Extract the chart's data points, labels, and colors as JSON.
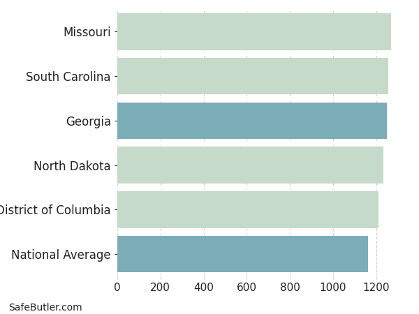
{
  "categories": [
    "National Average",
    "District of Columbia",
    "North Dakota",
    "Georgia",
    "South Carolina",
    "Missouri"
  ],
  "values": [
    1163,
    1209,
    1234,
    1248,
    1255,
    1268
  ],
  "colors": [
    "#7BADB9",
    "#C5DAC8",
    "#C5DAC8",
    "#7BADB9",
    "#C5DAC8",
    "#C5DAC8"
  ],
  "xlim": [
    0,
    1340
  ],
  "xticks": [
    0,
    200,
    400,
    600,
    800,
    1000,
    1200
  ],
  "background_color": "#ffffff",
  "bar_height": 0.82,
  "grid_color": "#cccccc",
  "text_color": "#222222",
  "footnote": "SafeButler.com",
  "footnote_fontsize": 10,
  "label_fontsize": 12,
  "tick_fontsize": 11
}
